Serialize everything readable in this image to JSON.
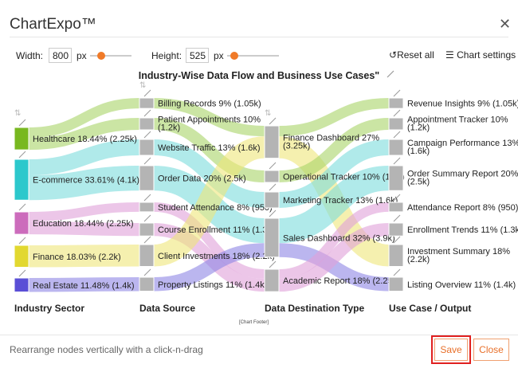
{
  "app": {
    "title": "ChartExpo™",
    "close_icon": "close-icon"
  },
  "toolbar": {
    "width_label": "Width:",
    "width_value": "800",
    "width_unit": "px",
    "height_label": "Height:",
    "height_value": "525",
    "height_unit": "px",
    "reset_label": "Reset all",
    "settings_label": "Chart settings"
  },
  "chart_data": {
    "type": "sankey",
    "title": "Industry-Wise Data Flow and Business Use Cases\"",
    "footer": "[Chart Footer]",
    "columns": [
      "Industry Sector",
      "Data Source",
      "Data Destination Type",
      "Use Case / Output"
    ],
    "nodes": [
      [
        {
          "name": "Healthcare",
          "label": "Healthcare 18.44% (2.25k)",
          "value": 2.25,
          "color": "#78b820"
        },
        {
          "name": "E-commerce",
          "label": "E-commerce 33.61% (4.1k)",
          "value": 4.1,
          "color": "#2cc8cc"
        },
        {
          "name": "Education",
          "label": "Education 18.44% (2.25k)",
          "value": 2.25,
          "color": "#cc6cbc"
        },
        {
          "name": "Finance",
          "label": "Finance 18.03% (2.2k)",
          "value": 2.2,
          "color": "#e2d830"
        },
        {
          "name": "Real Estate",
          "label": "Real Estate 11.48% (1.4k)",
          "value": 1.4,
          "color": "#5a4fd6"
        }
      ],
      [
        {
          "name": "Billing Records",
          "label": "Billing Records 9% (1.05k)",
          "value": 1.05
        },
        {
          "name": "Patient Appointments",
          "label": "Patient Appointments 10%",
          "label2": "(1.2k)",
          "value": 1.2
        },
        {
          "name": "Website Traffic",
          "label": "Website Traffic 13% (1.6k)",
          "value": 1.6
        },
        {
          "name": "Order Data",
          "label": "Order Data 20% (2.5k)",
          "value": 2.5
        },
        {
          "name": "Student Attendance",
          "label": "Student Attendance 8% (950)",
          "value": 0.95
        },
        {
          "name": "Course Enrollment",
          "label": "Course Enrollment 11% (1.3k)",
          "value": 1.3
        },
        {
          "name": "Client Investments",
          "label": "Client Investments 18% (2.2k)",
          "value": 2.2
        },
        {
          "name": "Property Listings",
          "label": "Property Listings 11% (1.4k)",
          "value": 1.4
        }
      ],
      [
        {
          "name": "Finance Dashboard",
          "label": "Finance Dashboard 27%",
          "label2": "(3.25k)",
          "value": 3.25
        },
        {
          "name": "Operational Tracker",
          "label": "Operational Tracker 10% (1.2k)",
          "value": 1.2
        },
        {
          "name": "Marketing Tracker",
          "label": "Marketing Tracker 13% (1.6k)",
          "value": 1.6
        },
        {
          "name": "Sales Dashboard",
          "label": "Sales Dashboard 32% (3.9k)",
          "value": 3.9
        },
        {
          "name": "Academic Report",
          "label": "Academic Report 18% (2.25k)",
          "value": 2.25
        }
      ],
      [
        {
          "name": "Revenue Insights",
          "label": "Revenue Insights 9% (1.05k)",
          "value": 1.05
        },
        {
          "name": "Appointment Tracker",
          "label": "Appointment Tracker 10%",
          "label2": "(1.2k)",
          "value": 1.2
        },
        {
          "name": "Campaign Performance",
          "label": "Campaign Performance 13%",
          "label2": "(1.6k)",
          "value": 1.6
        },
        {
          "name": "Order Summary Report",
          "label": "Order Summary Report 20%",
          "label2": "(2.5k)",
          "value": 2.5
        },
        {
          "name": "Attendance Report",
          "label": "Attendance Report 8% (950)",
          "value": 0.95
        },
        {
          "name": "Enrollment Trends",
          "label": "Enrollment Trends 11% (1.3k)",
          "value": 1.3
        },
        {
          "name": "Investment Summary",
          "label": "Investment Summary 18%",
          "label2": "(2.2k)",
          "value": 2.2
        },
        {
          "name": "Listing Overview",
          "label": "Listing Overview 11% (1.4k)",
          "value": 1.4
        }
      ]
    ],
    "links": [
      {
        "from": [
          0,
          0
        ],
        "to": [
          1,
          0
        ],
        "value": 1.05,
        "industry": 0
      },
      {
        "from": [
          0,
          0
        ],
        "to": [
          1,
          1
        ],
        "value": 1.2,
        "industry": 0
      },
      {
        "from": [
          0,
          1
        ],
        "to": [
          1,
          2
        ],
        "value": 1.6,
        "industry": 1
      },
      {
        "from": [
          0,
          1
        ],
        "to": [
          1,
          3
        ],
        "value": 2.5,
        "industry": 1
      },
      {
        "from": [
          0,
          2
        ],
        "to": [
          1,
          4
        ],
        "value": 0.95,
        "industry": 2
      },
      {
        "from": [
          0,
          2
        ],
        "to": [
          1,
          5
        ],
        "value": 1.3,
        "industry": 2
      },
      {
        "from": [
          0,
          3
        ],
        "to": [
          1,
          6
        ],
        "value": 2.2,
        "industry": 3
      },
      {
        "from": [
          0,
          4
        ],
        "to": [
          1,
          7
        ],
        "value": 1.4,
        "industry": 4
      },
      {
        "from": [
          1,
          0
        ],
        "to": [
          2,
          0
        ],
        "value": 1.05,
        "industry": 0
      },
      {
        "from": [
          1,
          1
        ],
        "to": [
          2,
          1
        ],
        "value": 1.2,
        "industry": 0
      },
      {
        "from": [
          1,
          2
        ],
        "to": [
          2,
          2
        ],
        "value": 1.6,
        "industry": 1
      },
      {
        "from": [
          1,
          3
        ],
        "to": [
          2,
          3
        ],
        "value": 2.5,
        "industry": 1
      },
      {
        "from": [
          1,
          4
        ],
        "to": [
          2,
          4
        ],
        "value": 0.95,
        "industry": 2
      },
      {
        "from": [
          1,
          5
        ],
        "to": [
          2,
          4
        ],
        "value": 1.3,
        "industry": 2
      },
      {
        "from": [
          1,
          6
        ],
        "to": [
          2,
          0
        ],
        "value": 2.2,
        "industry": 3
      },
      {
        "from": [
          1,
          7
        ],
        "to": [
          2,
          3
        ],
        "value": 1.4,
        "industry": 4
      },
      {
        "from": [
          2,
          0
        ],
        "to": [
          3,
          0
        ],
        "value": 1.05,
        "industry": 0
      },
      {
        "from": [
          2,
          0
        ],
        "to": [
          3,
          6
        ],
        "value": 2.2,
        "industry": 3
      },
      {
        "from": [
          2,
          1
        ],
        "to": [
          3,
          1
        ],
        "value": 1.2,
        "industry": 0
      },
      {
        "from": [
          2,
          2
        ],
        "to": [
          3,
          2
        ],
        "value": 1.6,
        "industry": 1
      },
      {
        "from": [
          2,
          3
        ],
        "to": [
          3,
          3
        ],
        "value": 2.5,
        "industry": 1
      },
      {
        "from": [
          2,
          3
        ],
        "to": [
          3,
          7
        ],
        "value": 1.4,
        "industry": 4
      },
      {
        "from": [
          2,
          4
        ],
        "to": [
          3,
          4
        ],
        "value": 0.95,
        "industry": 2
      },
      {
        "from": [
          2,
          4
        ],
        "to": [
          3,
          5
        ],
        "value": 1.3,
        "industry": 2
      }
    ]
  },
  "footer": {
    "hint": "Rearrange nodes vertically with a click-n-drag",
    "save_label": "Save",
    "close_label": "Close"
  }
}
